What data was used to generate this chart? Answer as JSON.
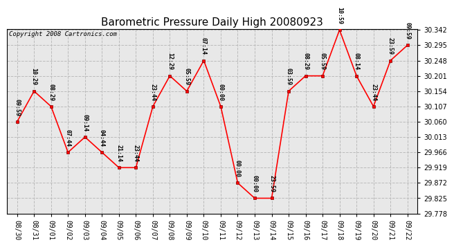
{
  "title": "Barometric Pressure Daily High 20080923",
  "copyright": "Copyright 2008 Cartronics.com",
  "x_labels": [
    "08/30",
    "08/31",
    "09/01",
    "09/02",
    "09/03",
    "09/04",
    "09/05",
    "09/06",
    "09/07",
    "09/08",
    "09/09",
    "09/10",
    "09/11",
    "09/12",
    "09/13",
    "09/14",
    "09/15",
    "09/16",
    "09/17",
    "09/18",
    "09/19",
    "09/20",
    "09/21",
    "09/22"
  ],
  "y_values": [
    30.06,
    30.154,
    30.107,
    29.966,
    30.013,
    29.966,
    29.919,
    29.919,
    30.107,
    30.201,
    30.154,
    30.248,
    30.107,
    29.872,
    29.825,
    29.825,
    30.154,
    30.201,
    30.201,
    30.342,
    30.201,
    30.107,
    30.248,
    30.295
  ],
  "point_labels": [
    "09:59",
    "10:29",
    "08:29",
    "07:44",
    "09:14",
    "04:44",
    "21:14",
    "23:44",
    "23:44",
    "12:29",
    "05:59",
    "07:14",
    "00:00",
    "00:00",
    "00:00",
    "23:59",
    "03:59",
    "08:29",
    "05:59",
    "10:59",
    "08:14",
    "23:44",
    "23:59",
    "09:59"
  ],
  "ylim_min": 29.778,
  "ylim_max": 30.342,
  "yticks": [
    29.778,
    29.825,
    29.872,
    29.919,
    29.966,
    30.013,
    30.06,
    30.107,
    30.154,
    30.201,
    30.248,
    30.295,
    30.342
  ],
  "line_color": "red",
  "marker_color": "red",
  "marker_edge_color": "#800000",
  "bg_color": "#e8e8e8",
  "grid_color": "#bbbbbb",
  "title_fontsize": 11,
  "label_fontsize": 6,
  "tick_fontsize": 7,
  "copyright_fontsize": 6.5
}
